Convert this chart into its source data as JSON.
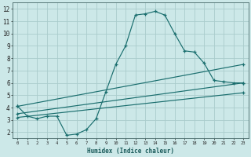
{
  "xlabel": "Humidex (Indice chaleur)",
  "bg_color": "#cce8e8",
  "grid_color": "#aacccc",
  "line_color": "#1a6e6e",
  "xlim": [
    -0.5,
    23.5
  ],
  "ylim": [
    1.5,
    12.5
  ],
  "xticks": [
    0,
    1,
    2,
    3,
    4,
    5,
    6,
    7,
    8,
    9,
    10,
    11,
    12,
    13,
    14,
    15,
    16,
    17,
    18,
    19,
    20,
    21,
    22,
    23
  ],
  "yticks": [
    2,
    3,
    4,
    5,
    6,
    7,
    8,
    9,
    10,
    11,
    12
  ],
  "curve1_x": [
    0,
    1,
    2,
    3,
    4,
    5,
    6,
    7,
    8,
    9,
    10,
    11,
    12,
    13,
    14,
    15,
    16,
    17,
    18,
    19,
    20,
    21,
    22,
    23
  ],
  "curve1_y": [
    4.1,
    3.3,
    3.1,
    3.3,
    3.3,
    1.75,
    1.85,
    2.2,
    3.1,
    5.3,
    7.5,
    9.0,
    11.5,
    11.6,
    11.8,
    11.5,
    10.0,
    8.6,
    8.5,
    7.6,
    6.2,
    6.1,
    6.0,
    6.0
  ],
  "curve2_x": [
    0,
    23
  ],
  "curve2_y": [
    4.1,
    7.5
  ],
  "curve3_x": [
    0,
    23
  ],
  "curve3_y": [
    3.5,
    6.0
  ],
  "curve4_x": [
    0,
    23
  ],
  "curve4_y": [
    3.2,
    5.2
  ]
}
